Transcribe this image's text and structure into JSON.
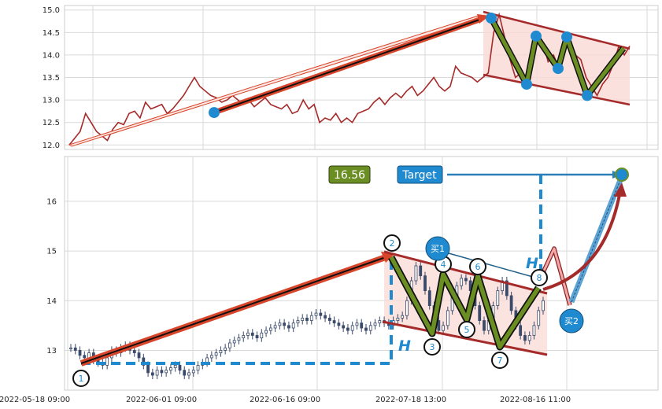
{
  "chart_data": [
    {
      "type": "line",
      "panel": "top",
      "ylim": [
        11.9,
        15.1
      ],
      "yticks": [
        "15.0",
        "14.5",
        "14.0",
        "13.5",
        "13.0",
        "12.5",
        "12.0"
      ],
      "grid": true,
      "series": [
        {
          "color": "#a52a2a",
          "values": [
            12.0,
            12.15,
            12.3,
            12.7,
            12.5,
            12.3,
            12.2,
            12.1,
            12.35,
            12.5,
            12.45,
            12.7,
            12.75,
            12.6,
            12.95,
            12.8,
            12.85,
            12.9,
            12.7,
            12.8,
            12.95,
            13.1,
            13.3,
            13.5,
            13.3,
            13.2,
            13.1,
            13.05,
            12.95,
            13.0,
            13.1,
            13.0,
            12.9,
            13.0,
            12.85,
            12.95,
            13.05,
            12.9,
            12.85,
            12.8,
            12.9,
            12.7,
            12.75,
            13.0,
            12.8,
            12.9,
            12.5,
            12.6,
            12.55,
            12.7,
            12.5,
            12.6,
            12.5,
            12.7,
            12.75,
            12.8,
            12.95,
            13.05,
            12.9,
            13.05,
            13.15,
            13.05,
            13.2,
            13.3,
            13.1,
            13.2,
            13.35,
            13.5,
            13.3,
            13.2,
            13.3,
            13.75,
            13.6,
            13.55,
            13.5,
            13.4,
            13.5,
            13.6,
            14.5,
            14.9,
            14.4,
            13.9,
            13.5,
            13.6,
            13.5,
            14.1,
            14.4,
            14.3,
            13.85,
            14.0,
            13.7,
            14.1,
            14.35,
            14.0,
            13.9,
            13.5,
            13.3,
            13.1,
            13.35,
            13.5,
            13.8,
            14.2,
            14.0,
            14.2
          ]
        }
      ],
      "pattern_points": [
        14.82,
        13.35,
        14.42,
        13.7,
        14.4,
        13.1,
        14.15
      ],
      "trend_line": {
        "from": 12.72,
        "to": 14.88
      }
    },
    {
      "type": "candlestick",
      "panel": "bottom",
      "ylim": [
        12.2,
        16.9
      ],
      "yticks": [
        "16",
        "15",
        "14",
        "13"
      ],
      "x_tick_labels": [
        "2022-05-18 09:00",
        "2022-06-01 09:00",
        "2022-06-16 09:00",
        "2022-07-18 13:00",
        "2022-08-16 11:00"
      ],
      "grid": true,
      "closes": [
        13.05,
        13.0,
        12.9,
        12.85,
        12.95,
        12.8,
        12.75,
        12.7,
        12.85,
        13.0,
        12.95,
        13.05,
        13.1,
        13.0,
        12.95,
        12.85,
        12.7,
        12.55,
        12.5,
        12.6,
        12.55,
        12.6,
        12.65,
        12.7,
        12.6,
        12.5,
        12.55,
        12.6,
        12.7,
        12.75,
        12.85,
        12.9,
        12.95,
        13.0,
        13.05,
        13.15,
        13.2,
        13.25,
        13.3,
        13.35,
        13.3,
        13.25,
        13.35,
        13.4,
        13.45,
        13.5,
        13.55,
        13.5,
        13.45,
        13.55,
        13.6,
        13.65,
        13.6,
        13.7,
        13.75,
        13.7,
        13.65,
        13.6,
        13.55,
        13.5,
        13.45,
        13.4,
        13.5,
        13.55,
        13.45,
        13.4,
        13.5,
        13.55,
        13.6,
        13.55,
        13.5,
        13.6,
        13.65,
        13.7,
        14.0,
        14.4,
        14.7,
        14.5,
        14.2,
        13.9,
        13.6,
        13.4,
        13.5,
        13.8,
        14.1,
        14.3,
        14.45,
        14.4,
        14.2,
        13.9,
        13.6,
        13.4,
        13.6,
        13.9,
        14.2,
        14.4,
        14.1,
        13.8,
        13.5,
        13.3,
        13.2,
        13.3,
        13.5,
        13.8,
        14.0
      ],
      "labels": {
        "value_box": "16.56",
        "target_box": "Target",
        "h_label": "H",
        "buy1": "买1",
        "buy2": "买2"
      },
      "pivots": [
        {
          "label": "1",
          "y": 12.73
        },
        {
          "label": "2",
          "y": 14.88
        },
        {
          "label": "3",
          "y": 13.3
        },
        {
          "label": "4",
          "y": 14.5
        },
        {
          "label": "5",
          "y": 13.65
        },
        {
          "label": "6",
          "y": 14.5
        },
        {
          "label": "7",
          "y": 13.1
        },
        {
          "label": "8",
          "y": 14.3
        }
      ],
      "colors": {
        "trend": "#d9452a",
        "zigzag": "#6b8e23",
        "channel": "#a52a2a",
        "fill": "#f9d9d4",
        "accent": "#1f8ad0",
        "dashed": "#1f8ad0"
      }
    }
  ]
}
